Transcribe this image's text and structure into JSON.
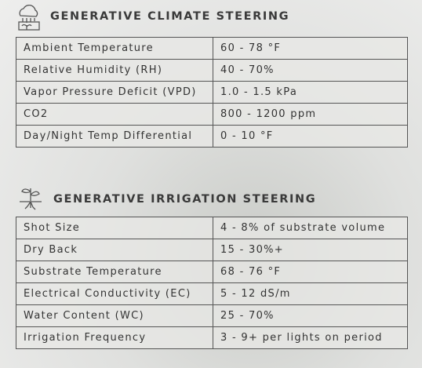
{
  "sections": [
    {
      "title": "GENERATIVE CLIMATE STEERING",
      "rows": [
        [
          "Ambient Temperature",
          "60 - 78 °F"
        ],
        [
          "Relative Humidity (RH)",
          "40 - 70%"
        ],
        [
          "Vapor Pressure Deficit (VPD)",
          "1.0 - 1.5 kPa"
        ],
        [
          "CO2",
          "800 - 1200 ppm"
        ],
        [
          "Day/Night Temp Differential",
          "0 - 10 °F"
        ]
      ]
    },
    {
      "title": "GENERATIVE IRRIGATION STEERING",
      "rows": [
        [
          "Shot Size",
          "4 - 8% of substrate volume"
        ],
        [
          "Dry Back",
          "15 - 30%+"
        ],
        [
          "Substrate Temperature",
          "68 - 76 °F"
        ],
        [
          "Electrical Conductivity (EC)",
          "5 - 12 dS/m"
        ],
        [
          "Water Content (WC)",
          "25 - 70%"
        ],
        [
          "Irrigation Frequency",
          "3 - 9+ per lights on period"
        ]
      ]
    }
  ]
}
